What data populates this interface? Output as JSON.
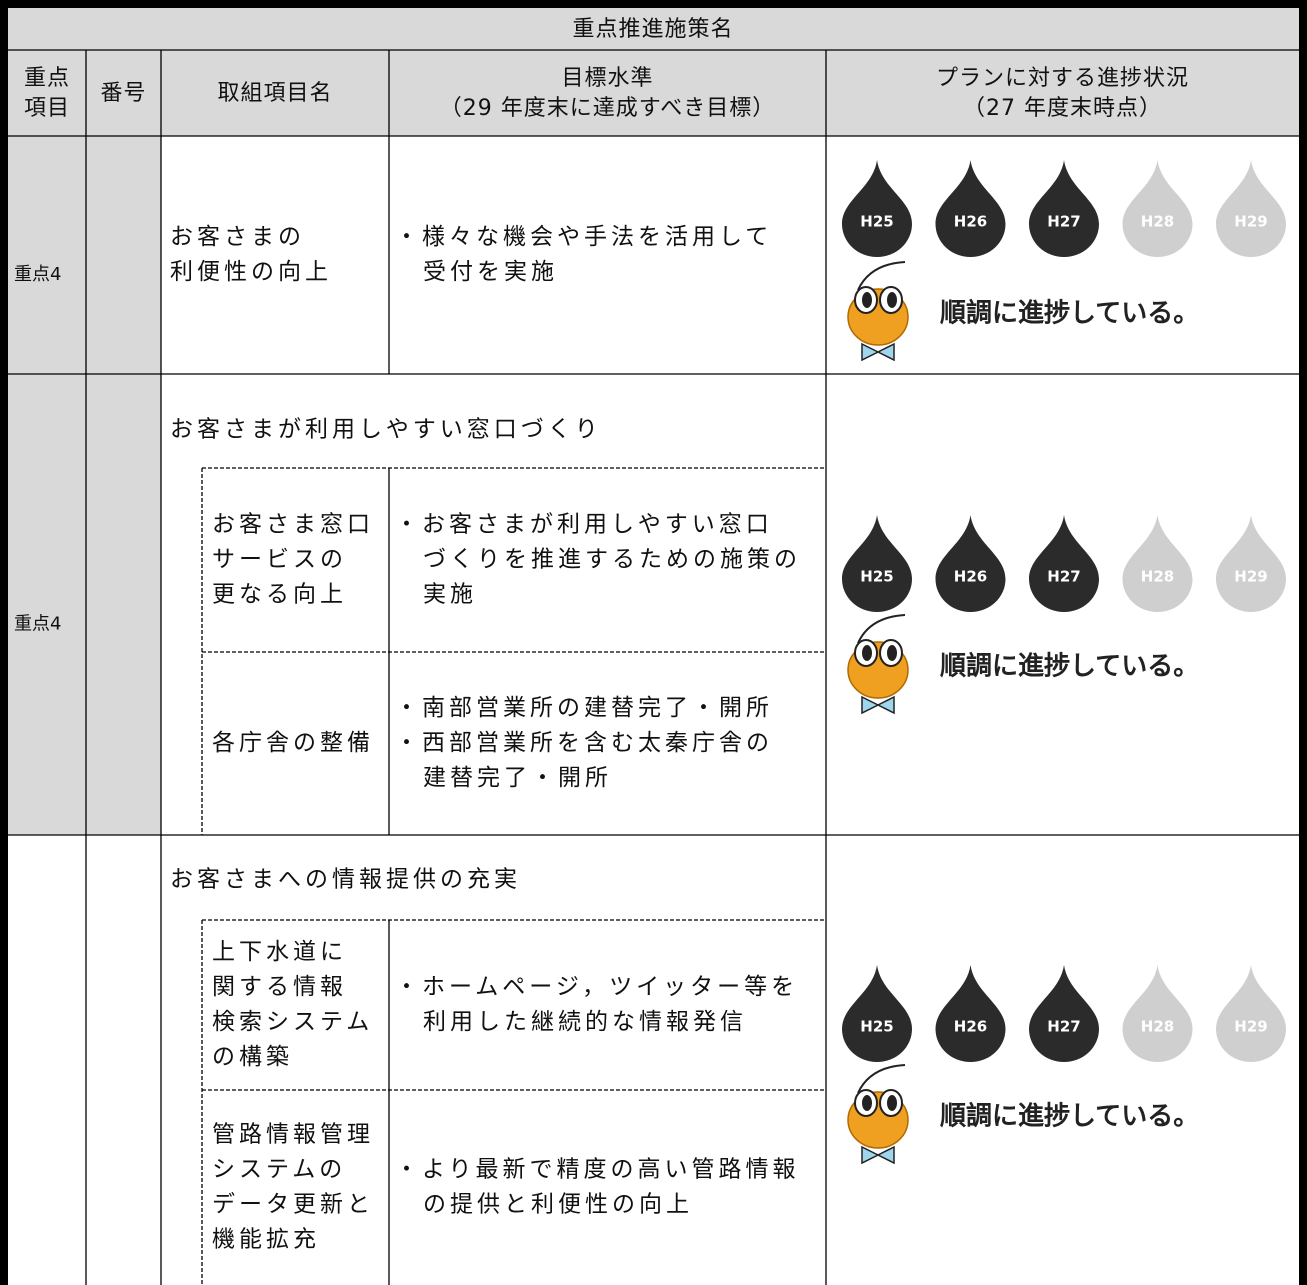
{
  "table": {
    "title": "重点推進施策名",
    "headers": {
      "priority": [
        "重点",
        "項目"
      ],
      "number": [
        "番号"
      ],
      "item": [
        "取組項目名"
      ],
      "target": [
        "目標水準",
        "（29 年度末に達成すべき目標）"
      ],
      "progress": [
        "プランに対する進捗状況",
        "（27 年度末時点）"
      ]
    },
    "rows": [
      {
        "priority": "重点4",
        "shaded": true,
        "items": [
          {
            "name": [
              "お客さまの",
              "利便性の向上"
            ],
            "targets": [
              [
                "・様々な機会や手法を活用して",
                "受付を実施"
              ]
            ]
          }
        ],
        "progress": {
          "years": [
            {
              "label": "H25",
              "achieved": true
            },
            {
              "label": "H26",
              "achieved": true
            },
            {
              "label": "H27",
              "achieved": true
            },
            {
              "label": "H28",
              "achieved": false
            },
            {
              "label": "H29",
              "achieved": false
            }
          ],
          "status": "順調に進捗している。"
        }
      },
      {
        "priority": "重点4",
        "shaded": true,
        "group": "お客さまが利用しやすい窓口づくり",
        "items": [
          {
            "name": [
              "お客さま窓口",
              "サービスの",
              "更なる向上"
            ],
            "targets": [
              [
                "・お客さまが利用しやすい窓口",
                "づくりを推進するための施策の",
                "実施"
              ]
            ]
          },
          {
            "name": [
              "各庁舎の整備"
            ],
            "targets": [
              [
                "・南部営業所の建替完了・開所"
              ],
              [
                "・西部営業所を含む太秦庁舎の",
                "建替完了・開所"
              ]
            ]
          }
        ],
        "progress": {
          "years": [
            {
              "label": "H25",
              "achieved": true
            },
            {
              "label": "H26",
              "achieved": true
            },
            {
              "label": "H27",
              "achieved": true
            },
            {
              "label": "H28",
              "achieved": false
            },
            {
              "label": "H29",
              "achieved": false
            }
          ],
          "status": "順調に進捗している。"
        }
      },
      {
        "shaded": false,
        "group": "お客さまへの情報提供の充実",
        "items": [
          {
            "name": [
              "上下水道に",
              "関する情報",
              "検索システム",
              "の構築"
            ],
            "targets": [
              [
                "・ホームページ，ツイッター等を",
                "利用した継続的な情報発信"
              ]
            ]
          },
          {
            "name": [
              "管路情報管理",
              "システムの",
              "データ更新と",
              "機能拡充"
            ],
            "targets": [
              [
                "・より最新で精度の高い管路情報",
                "の提供と利便性の向上"
              ]
            ]
          }
        ],
        "progress": {
          "years": [
            {
              "label": "H25",
              "achieved": true
            },
            {
              "label": "H26",
              "achieved": true
            },
            {
              "label": "H27",
              "achieved": true
            },
            {
              "label": "H28",
              "achieved": false
            },
            {
              "label": "H29",
              "achieved": false
            }
          ],
          "status": "順調に進捗している。"
        }
      }
    ]
  }
}
